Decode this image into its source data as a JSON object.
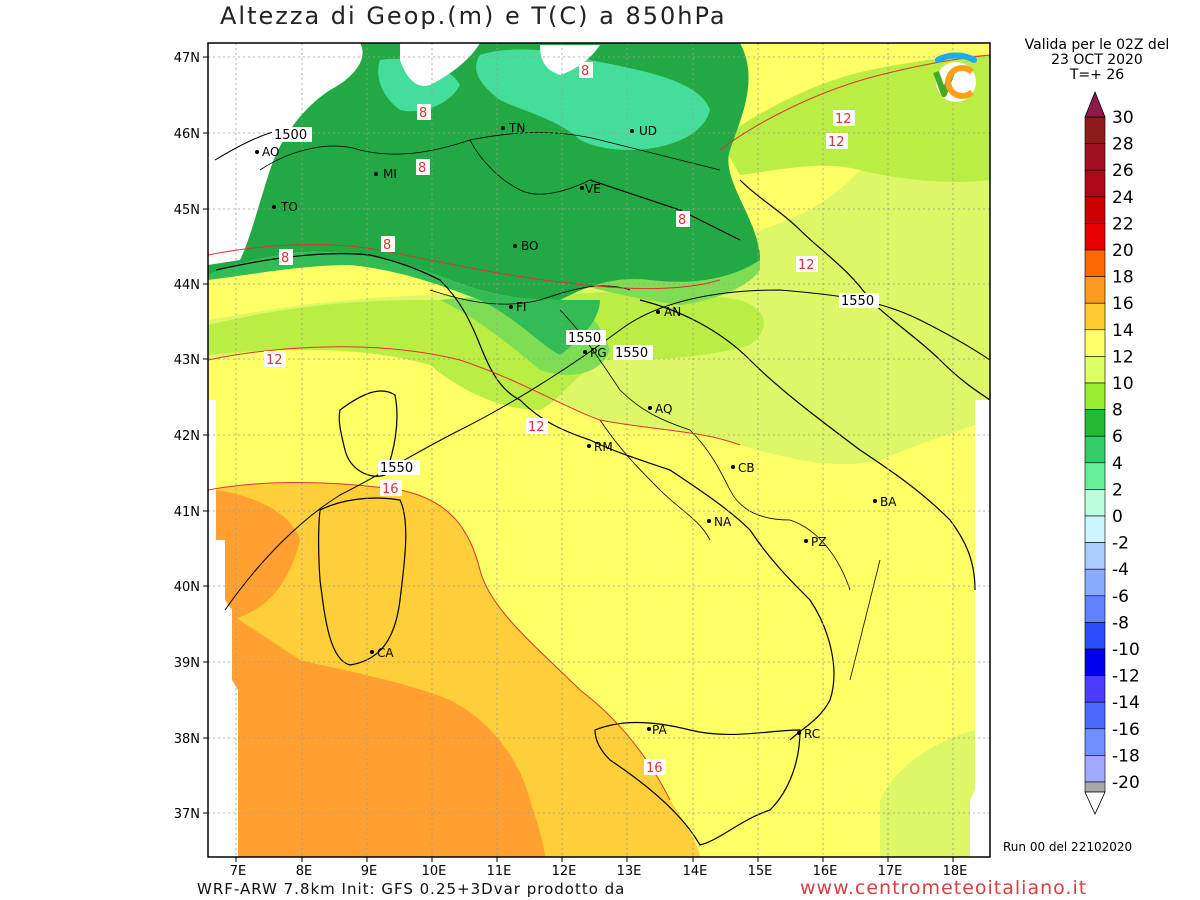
{
  "title": "Altezza di Geop.(m) e T(C) a 850hPa",
  "validity": {
    "line1": "Valida per le 02Z del",
    "line2": "23 OCT 2020",
    "line3": "T=+ 26"
  },
  "run_label": "Run 00 del 22102020",
  "credit": "WRF-ARW 7.8km Init: GFS 0.25+3Dvar prodotto da",
  "website": "www.centrometeoitaliano.it",
  "axes": {
    "lat_labels": [
      "47N",
      "46N",
      "45N",
      "44N",
      "43N",
      "42N",
      "41N",
      "40N",
      "39N",
      "38N",
      "37N"
    ],
    "lon_labels": [
      "7E",
      "8E",
      "9E",
      "10E",
      "11E",
      "12E",
      "13E",
      "14E",
      "15E",
      "16E",
      "17E",
      "18E"
    ]
  },
  "legend": {
    "values": [
      "30",
      "28",
      "26",
      "24",
      "22",
      "20",
      "18",
      "16",
      "14",
      "12",
      "10",
      "8",
      "6",
      "4",
      "2",
      "0",
      "-2",
      "-4",
      "-6",
      "-8",
      "-10",
      "-12",
      "-14",
      "-16",
      "-18",
      "-20"
    ],
    "colors": [
      "#8e1a1a",
      "#a01020",
      "#b00818",
      "#cc0000",
      "#e80000",
      "#ff6a00",
      "#ff9a20",
      "#ffca30",
      "#ffff66",
      "#ddff66",
      "#99ee33",
      "#22bb33",
      "#33cc66",
      "#66ee99",
      "#bbffdd",
      "#ccf5ff",
      "#aaccff",
      "#88aaff",
      "#5f82ff",
      "#2a4fff",
      "#0000ee",
      "#4b3cff",
      "#4b6bff",
      "#7090ff",
      "#a0a8ff",
      "#a8a8a8"
    ]
  },
  "cities": [
    {
      "code": "TN"
    },
    {
      "code": "UD"
    },
    {
      "code": "MI"
    },
    {
      "code": "TO"
    },
    {
      "code": "AO"
    },
    {
      "code": "VE"
    },
    {
      "code": "BO"
    },
    {
      "code": "FI"
    },
    {
      "code": "AN"
    },
    {
      "code": "PG"
    },
    {
      "code": "AQ"
    },
    {
      "code": "RM"
    },
    {
      "code": "CB"
    },
    {
      "code": "BA"
    },
    {
      "code": "NA"
    },
    {
      "code": "PZ"
    },
    {
      "code": "CA"
    },
    {
      "code": "PA"
    },
    {
      "code": "RC"
    }
  ],
  "contour_labels": {
    "geop": [
      "1500",
      "1550",
      "1550",
      "1550",
      "1550"
    ],
    "temp": [
      "8",
      "8",
      "8",
      "8",
      "8",
      "8",
      "12",
      "12",
      "12",
      "12",
      "12",
      "16",
      "16"
    ]
  },
  "colors": {
    "green_dark": "#22a944",
    "green_mid": "#33bb55",
    "green_light": "#7fdd55",
    "lime": "#bbee44",
    "yellow_green": "#ddf766",
    "yellow": "#ffff66",
    "orange_light": "#ffcf3a",
    "orange": "#ffa030",
    "orange_dark": "#f28a28",
    "aquamarine": "#44dd99"
  },
  "icons": [
    "centrometeoitaliano-logo"
  ]
}
